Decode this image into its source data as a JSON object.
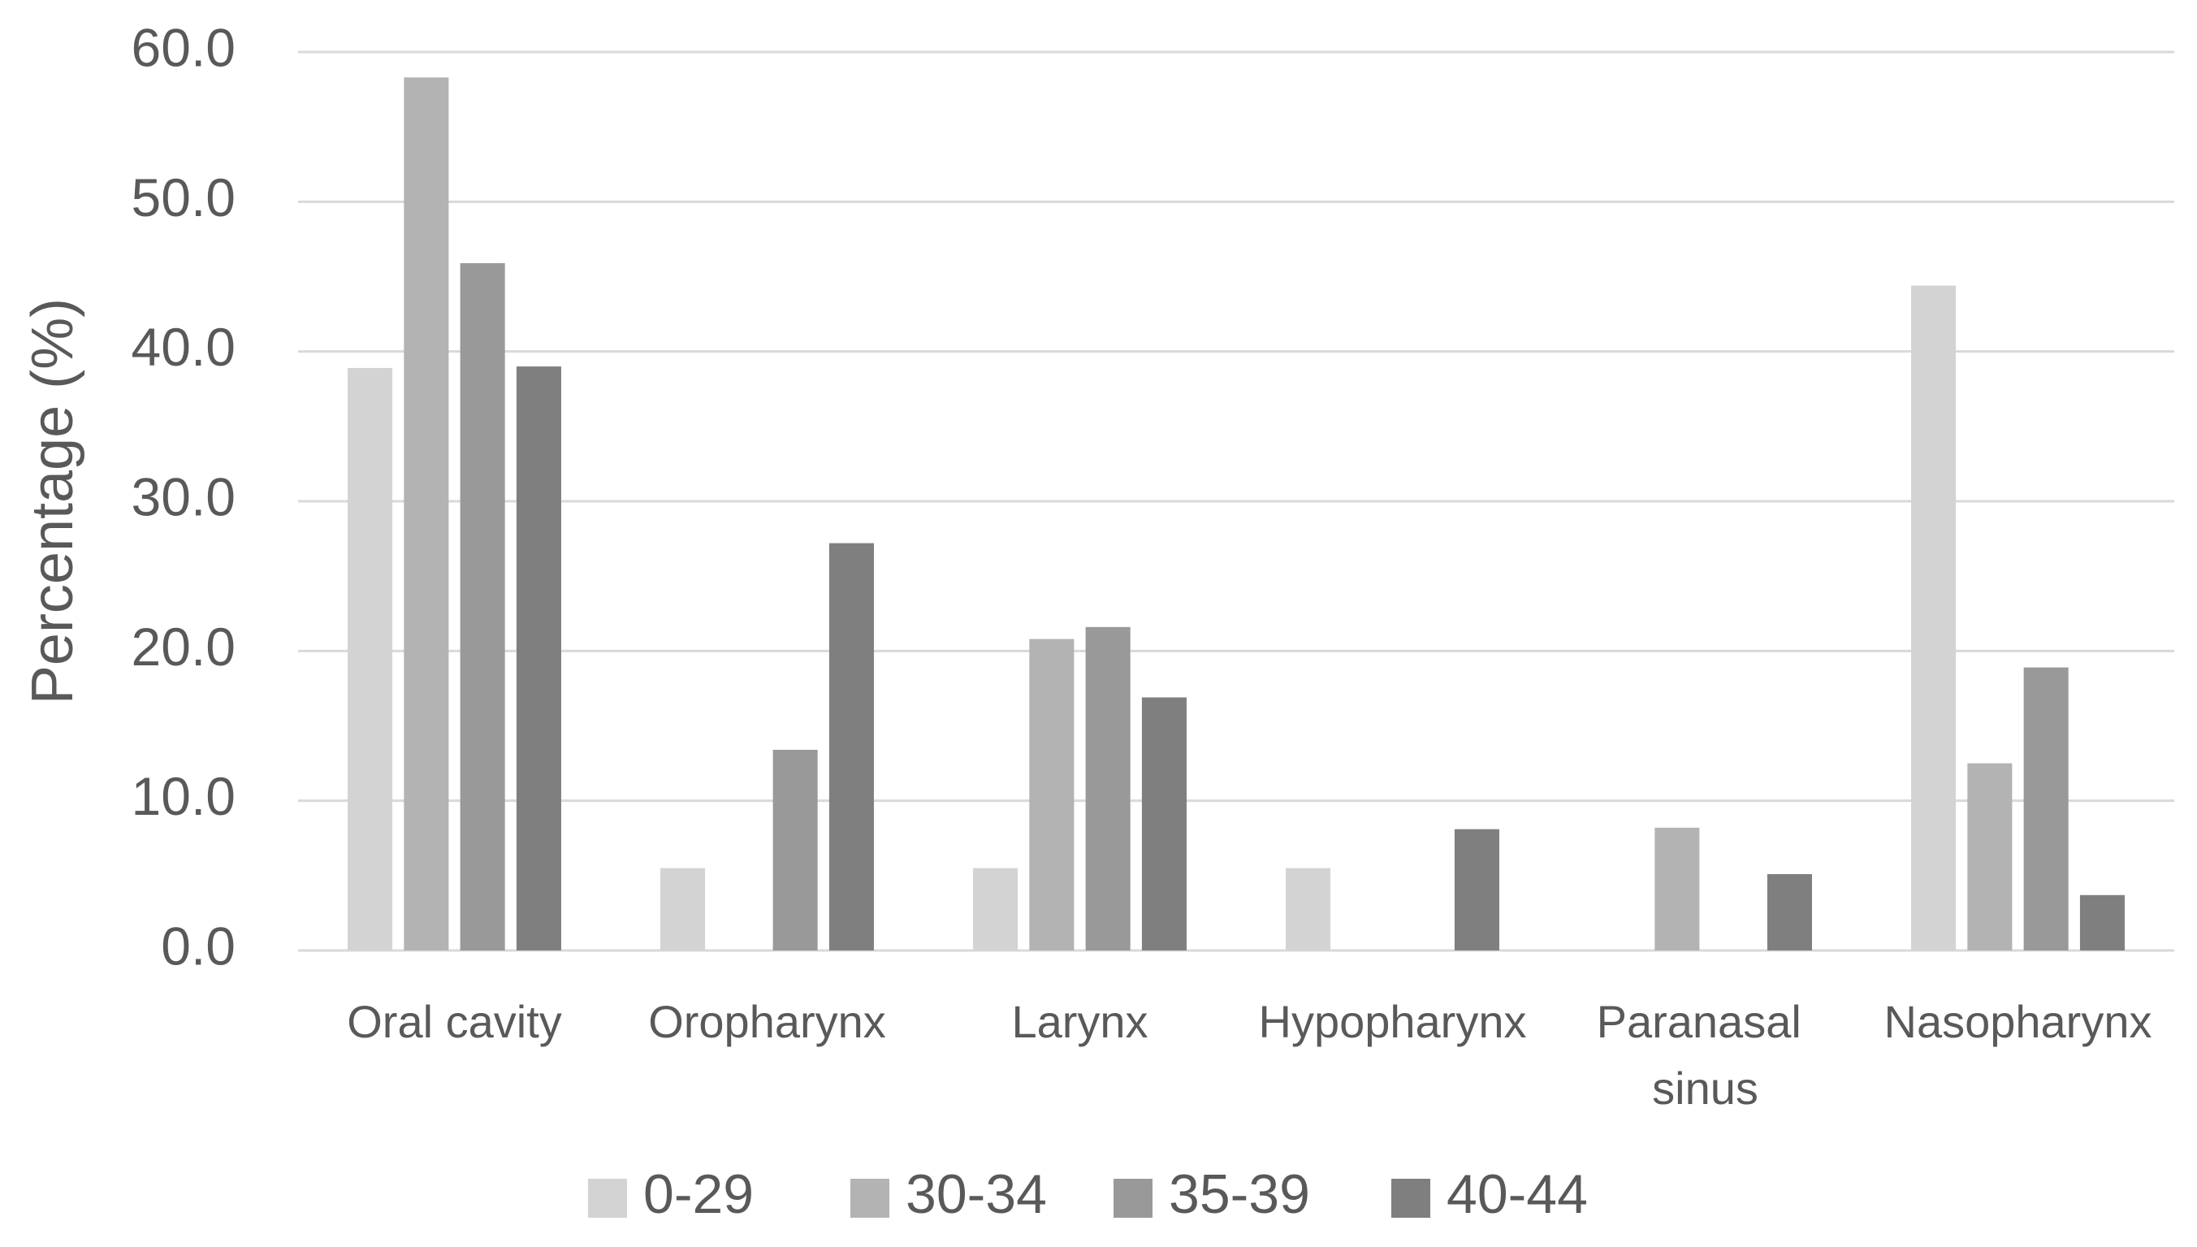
{
  "chart_data": {
    "type": "bar",
    "y_label": "Percentage (%)",
    "categories": [
      "Oral cavity",
      "Oropharynx",
      "Larynx",
      "Hypopharynx",
      "Paranasal sinus",
      "Nasopharynx"
    ],
    "series": [
      {
        "name": "0-29",
        "color": "#d3d3d3",
        "values": [
          38.9,
          5.5,
          5.5,
          5.5,
          0,
          44.4
        ]
      },
      {
        "name": "30-34",
        "color": "#b3b3b3",
        "values": [
          58.3,
          0,
          20.8,
          0,
          8.2,
          12.5
        ]
      },
      {
        "name": "35-39",
        "color": "#999999",
        "values": [
          45.9,
          13.4,
          21.6,
          0,
          0,
          18.9
        ]
      },
      {
        "name": "40-44",
        "color": "#7f7f7f",
        "values": [
          39.0,
          27.2,
          16.9,
          8.1,
          5.1,
          3.7
        ]
      }
    ],
    "ylim": [
      0,
      60
    ],
    "yticks": [
      {
        "value": 0,
        "label": "0.0"
      },
      {
        "value": 10,
        "label": "10.0"
      },
      {
        "value": 20,
        "label": "20.0"
      },
      {
        "value": 30,
        "label": "30.0"
      },
      {
        "value": 40,
        "label": "40.0"
      },
      {
        "value": 50,
        "label": "50.0"
      },
      {
        "value": 60,
        "label": "60.0"
      }
    ],
    "grid": true,
    "legend": "bottom"
  }
}
